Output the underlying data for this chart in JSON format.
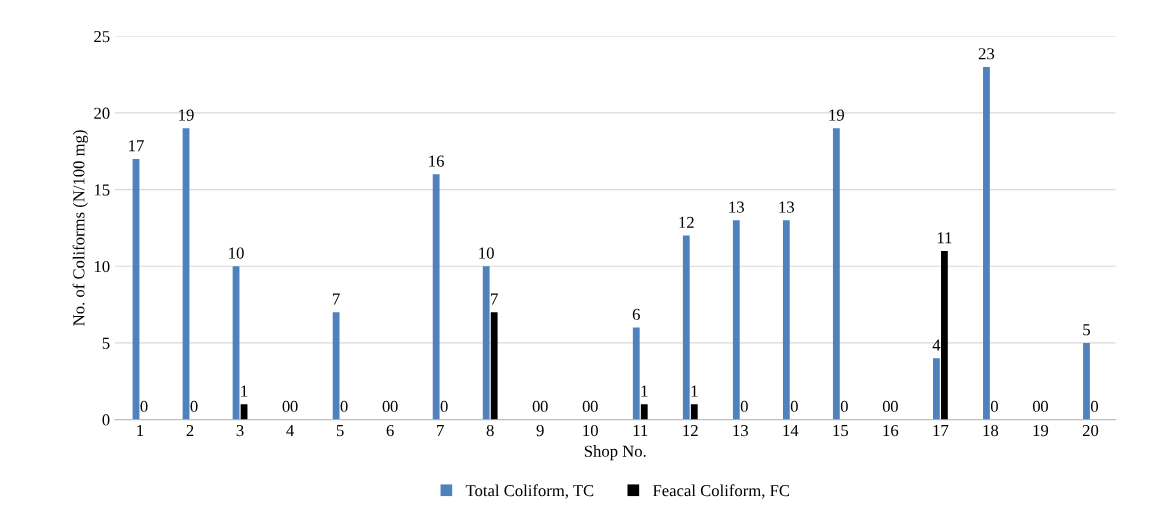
{
  "chart_data": {
    "type": "bar",
    "xlabel": "Shop No.",
    "ylabel": "No. of Coliforms (N/100 mg)",
    "categories": [
      "1",
      "2",
      "3",
      "4",
      "5",
      "6",
      "7",
      "8",
      "9",
      "10",
      "11",
      "12",
      "13",
      "14",
      "15",
      "16",
      "17",
      "18",
      "19",
      "20"
    ],
    "series": [
      {
        "name": "Total Coliform, TC",
        "color": "#4f81bd",
        "values": [
          17,
          19,
          10,
          0,
          7,
          0,
          16,
          10,
          0,
          0,
          6,
          12,
          13,
          13,
          19,
          0,
          4,
          23,
          0,
          5
        ]
      },
      {
        "name": "Feacal Coliform, FC",
        "color": "#000000",
        "values": [
          0,
          0,
          1,
          0,
          0,
          0,
          0,
          7,
          0,
          0,
          1,
          1,
          0,
          0,
          0,
          0,
          11,
          0,
          0,
          0
        ]
      }
    ],
    "ylim": [
      0,
      25
    ],
    "yticks": [
      0,
      5,
      10,
      15,
      20,
      25
    ],
    "grid": "y",
    "legend": "bottom",
    "data_labels": true
  }
}
